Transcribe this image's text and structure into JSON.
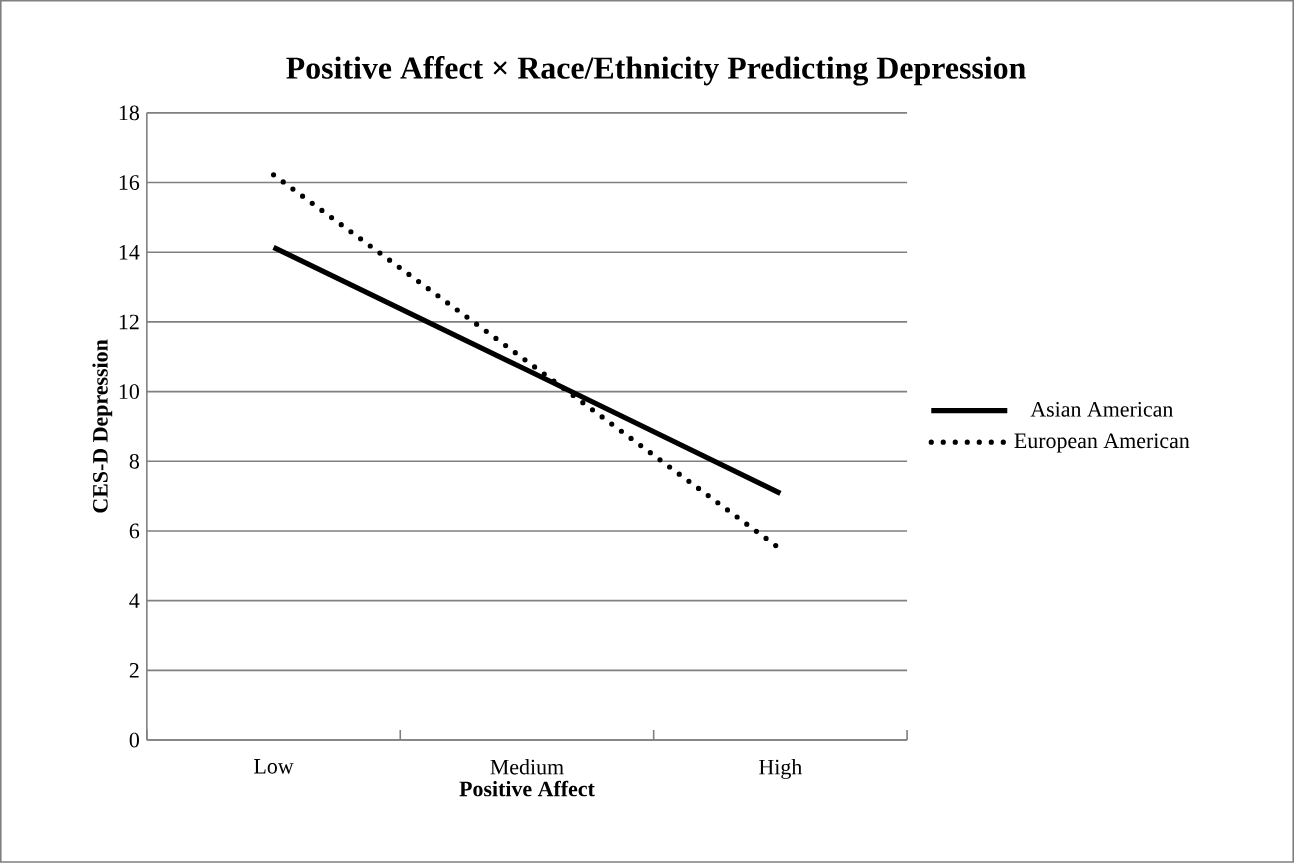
{
  "chart_data": {
    "type": "line",
    "title": "Positive Affect × Race/Ethnicity Predicting Depression",
    "xlabel": "Positive Affect",
    "ylabel": "CES-D Depression",
    "categories": [
      "Low",
      "Medium",
      "High"
    ],
    "series": [
      {
        "name": "Asian American",
        "color": "#000000",
        "values": [
          14.14,
          10.62,
          7.08
        ],
        "line_style": "solid"
      },
      {
        "name": "European American",
        "color": "#000000",
        "values": [
          16.22,
          10.87,
          5.48
        ],
        "line_style": "dotted"
      }
    ],
    "ylim": [
      0,
      18
    ],
    "yticks": [
      0,
      2,
      4,
      6,
      8,
      10,
      12,
      14,
      16,
      18
    ],
    "grid": "y",
    "legend": "right",
    "marker": "none"
  }
}
